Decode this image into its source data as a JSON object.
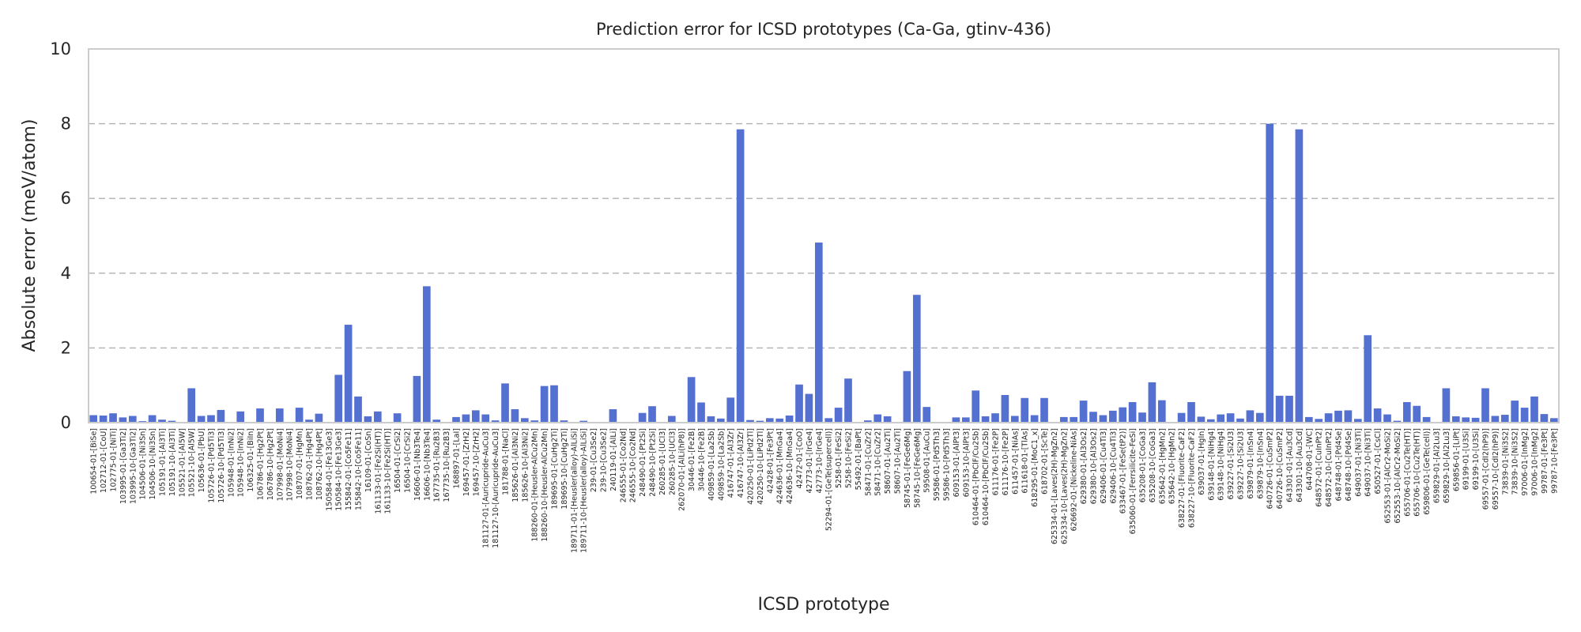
{
  "chart_data": {
    "type": "bar",
    "title": "Prediction error for ICSD prototypes (Ca-Ga, gtinv-436)",
    "xlabel": "ICSD prototype",
    "ylabel": "Absolute error (meV/atom)",
    "ylim": [
      0,
      10
    ],
    "yticks": [
      0,
      2,
      4,
      6,
      8,
      10
    ],
    "grid": "y",
    "legend": "none",
    "bar_color": "#5470d0",
    "categories": [
      "100654-01-[BiSe]",
      "102712-01-[CoU]",
      "102775-01-[NiTi]",
      "103995-01-[Ga3Ti2]",
      "103995-10-[Ga3Ti2]",
      "104506-01-[Ni3Sn]",
      "104506-10-[Ni3Sn]",
      "105191-01-[Al3Ti]",
      "105191-10-[Al3Ti]",
      "105521-01-[Al5W]",
      "105521-10-[Al5W]",
      "105636-01-[PbU]",
      "105726-01-[Pd5Ti3]",
      "105726-10-[Pd5Ti3]",
      "105948-01-[InNi2]",
      "105948-10-[InNi2]",
      "106325-01-[BiIn]",
      "106786-01-[Hg2Pt]",
      "106786-10-[Hg2Pt]",
      "107998-01-[MoNi4]",
      "107998-10-[MoNi4]",
      "108707-01-[HgMn]",
      "108762-01-[Hg4Pt]",
      "108762-10-[Hg4Pt]",
      "150584-01-[Fe13Ge3]",
      "150584-10-[Fe13Ge3]",
      "155842-01-[Co5Fe11]",
      "155842-10-[Co5Fe11]",
      "16109-01-[CoSn]",
      "161133-01-[Fe2Si(HT)]",
      "161133-10-[Fe2Si(HT)]",
      "16504-01-[CrSi2]",
      "16504-10-[CrSi2]",
      "16606-01-[Nb3Te4]",
      "16606-10-[Nb3Te4]",
      "167735-01-[Ru2B3]",
      "167735-10-[Ru2B3]",
      "168897-01-[LaI]",
      "169457-01-[ZrH2]",
      "169457-10-[ZrH2]",
      "181127-01-[Auricupride-AuCu3]",
      "181127-10-[Auricupride-AuCu3]",
      "181788-01-[NaCl]",
      "185626-01-[Al3Ni2]",
      "185626-10-[Al3Ni2]",
      "188260-01-[Heusler-AlCu2Mn]",
      "188260-10-[Heusler-AlCu2Mn]",
      "189695-01-[CuHg2Ti]",
      "189695-10-[CuHg2Ti]",
      "189711-01-[Heusler(alloy)-AlLiSi]",
      "189711-10-[Heusler(alloy)-AlLiSi]",
      "239-01-[Cu3Se2]",
      "239-10-[Cu3Se2]",
      "240119-01-[AlLi]",
      "246555-01-[Co2Nd]",
      "246555-10-[Co2Nd]",
      "248490-01-[Pt2Si]",
      "248490-10-[Pt2Si]",
      "260285-01-[UCl3]",
      "260285-10-[UCl3]",
      "262070-01-[AlLi(hP8)]",
      "30446-01-[Fe2B]",
      "30446-10-[Fe2B]",
      "409859-01-[La2Sb]",
      "409859-10-[La2Sb]",
      "416747-01-[Al3Zr]",
      "416747-10-[Al3Zr]",
      "420250-01-[LiPd2Tl]",
      "420250-10-[LiPd2Tl]",
      "42428-01-[Fe3Pt]",
      "424636-01-[MnGa4]",
      "424636-10-[MnGa4]",
      "42472-01-[CoO]",
      "42773-01-[IrGe4]",
      "42773-10-[IrGe4]",
      "52294-01-[GeTe(supercell)]",
      "5258-01-[FeSi2]",
      "5258-10-[FeSi2]",
      "55492-01-[BaPt]",
      "58471-01-[CuZr2]",
      "58471-10-[CuZr2]",
      "58607-01-[Au2Ti]",
      "58607-10-[Au2Ti]",
      "58745-01-[FeGe6Mg]",
      "58745-10-[FeGe6Mg]",
      "59508-01-[AuCu]",
      "59586-01-[Pd5Th3]",
      "59586-10-[Pd5Th3]",
      "609153-01-[AlPt3]",
      "609153-10-[AlPt3]",
      "610464-01-[PbClF/Cu2Sb]",
      "610464-10-[PbClF/Cu2Sb]",
      "611176-01-[Fe2P]",
      "611176-10-[Fe2P]",
      "611457-01-[NiAs]",
      "611618-01-[TlAs]",
      "618295-01-[MoC1_x]",
      "618702-01-[ScTe]",
      "625334-01-[Laves(2H)-MgZn2]",
      "625334-10-[Laves(2H)-MgZn2]",
      "626692-01-[Nickeline-NiAs]",
      "629380-01-[Al3Os2]",
      "629380-10-[Al3Os2]",
      "629406-01-[Cu4Ti3]",
      "629406-10-[Cu4Ti3]",
      "633467-01-[FeSe(tP2)]",
      "635060-01-[Ferrsilicite-FeSi]",
      "635208-01-[CoGa3]",
      "635208-10-[CoGa3]",
      "635642-01-[HgMn2]",
      "635642-10-[HgMn2]",
      "638227-01-[Fluorite-CaF2]",
      "638227-10-[Fluorite-CaF2]",
      "639037-01-[HgIn]",
      "639148-01-[NiHg4]",
      "639148-10-[NiHg4]",
      "639227-01-[Si2U3]",
      "639227-10-[Si2U3]",
      "639879-01-[InSn4]",
      "639879-10-[InSn4]",
      "640726-01-[CuSmP2]",
      "640726-10-[CuSmP2]",
      "643301-01-[Au3Cd]",
      "643301-10-[Au3Cd]",
      "644708-01-[WC]",
      "648572-01-[CuInPt2]",
      "648572-10-[CuInPt2]",
      "648748-01-[Pd4Se]",
      "648748-10-[Pd4Se]",
      "649037-01-[Ni3Ti]",
      "649037-10-[Ni3Ti]",
      "650527-01-[CsCl]",
      "652553-01-[AlCr2-MoSi2]",
      "652553-10-[AlCr2-MoSi2]",
      "655706-01-[Cu2Te(HT)]",
      "655706-10-[Cu2Te(HT)]",
      "659806-01-[GeTe(cell)]",
      "659829-01-[Al2Lu3]",
      "659829-10-[Al2Lu3]",
      "659856-01-[LiPt]",
      "69199-01-[U3Si]",
      "69199-10-[U3Si]",
      "69557-01-[CdI2(hP9)]",
      "69557-10-[CdI2(hP9)]",
      "73839-01-[Ni3S2]",
      "73839-10-[Ni3S2]",
      "97006-01-[InMg2]",
      "97006-10-[InMg2]",
      "99787-01-[Fe3Pt]",
      "99787-10-[Fe3Pt]"
    ],
    "values": [
      0.2,
      0.19,
      0.25,
      0.14,
      0.18,
      0.04,
      0.2,
      0.08,
      0.05,
      0.02,
      0.92,
      0.18,
      0.2,
      0.34,
      0.01,
      0.3,
      0.01,
      0.38,
      0.01,
      0.38,
      0.01,
      0.4,
      0.08,
      0.24,
      0.02,
      1.28,
      2.62,
      0.7,
      0.17,
      0.3,
      0.01,
      0.25,
      0.01,
      1.25,
      3.65,
      0.08,
      0.02,
      0.15,
      0.22,
      0.33,
      0.22,
      0.06,
      1.05,
      0.36,
      0.12,
      0.06,
      0.98,
      1.0,
      0.06,
      0.02,
      0.05,
      0.02,
      0.01,
      0.36,
      0.02,
      0.02,
      0.26,
      0.44,
      0.02,
      0.18,
      0.02,
      1.22,
      0.54,
      0.17,
      0.11,
      0.67,
      7.85,
      0.07,
      0.05,
      0.12,
      0.11,
      0.19,
      1.02,
      0.77,
      4.82,
      0.12,
      0.4,
      1.18,
      0.02,
      0.06,
      0.22,
      0.17,
      0.02,
      1.38,
      3.42,
      0.42,
      0.02,
      0.02,
      0.14,
      0.14,
      0.86,
      0.17,
      0.25,
      0.74,
      0.18,
      0.66,
      0.2,
      0.66,
      0.02,
      0.15,
      0.15,
      0.59,
      0.29,
      0.2,
      0.32,
      0.41,
      0.55,
      0.27,
      1.08,
      0.6,
      0.02,
      0.26,
      0.55,
      0.16,
      0.09,
      0.22,
      0.25,
      0.11,
      0.33,
      0.26,
      8.0,
      0.72,
      0.72,
      7.85,
      0.15,
      0.1,
      0.25,
      0.32,
      0.33,
      0.1,
      2.34,
      0.38,
      0.22,
      0.05,
      0.55,
      0.45,
      0.15,
      0.01,
      0.92,
      0.17,
      0.14,
      0.13,
      0.92,
      0.18,
      0.21,
      0.59,
      0.4,
      0.7,
      0.23,
      0.12
    ]
  }
}
